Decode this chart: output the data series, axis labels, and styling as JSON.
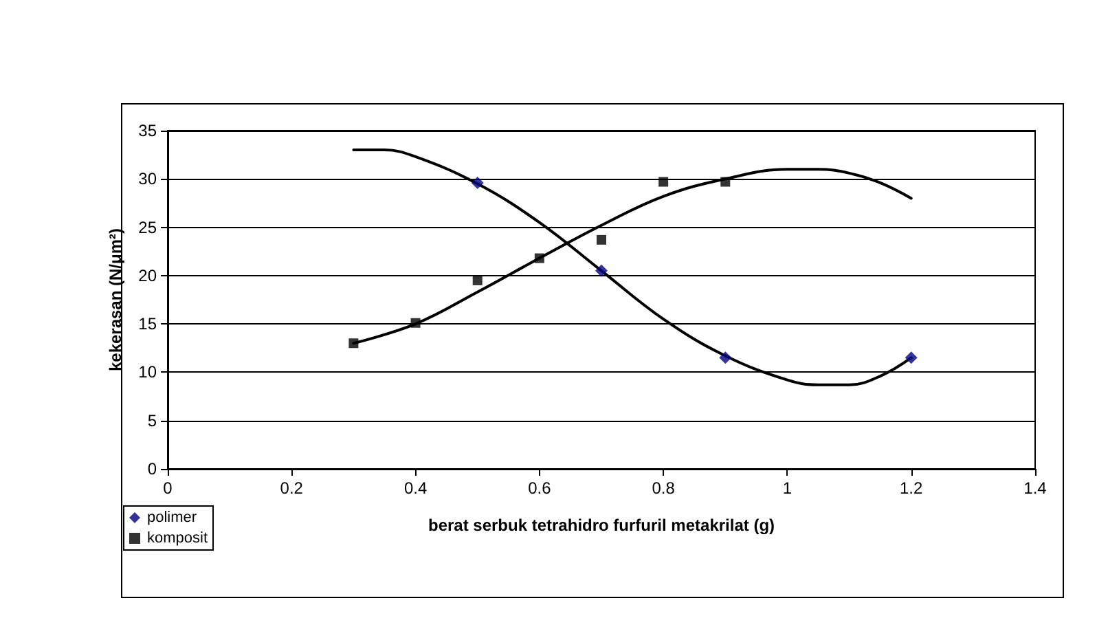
{
  "chart_data": {
    "type": "scatter",
    "xlabel": "berat serbuk tetrahidro furfuril metakrilat (g)",
    "ylabel": "kekerasan (N/μm²)",
    "xlim": [
      0,
      1.4
    ],
    "xticks": [
      0,
      0.2,
      0.4,
      0.6,
      0.8,
      1,
      1.2,
      1.4
    ],
    "ylim": [
      0,
      35
    ],
    "yticks": [
      0,
      5,
      10,
      15,
      20,
      25,
      30,
      35
    ],
    "grid": "y",
    "legend": "bottom left",
    "series": [
      {
        "name": "polimer",
        "color": "#000080",
        "marker": "diamond",
        "x": [
          0.5,
          0.7,
          0.9,
          1.2
        ],
        "values": [
          29.6,
          20.5,
          11.5,
          11.5
        ]
      },
      {
        "name": "komposit",
        "color": "#000000",
        "marker": "square",
        "x": [
          0.3,
          0.4,
          0.5,
          0.6,
          0.7,
          0.8,
          0.9
        ],
        "values": [
          13,
          15.1,
          19.5,
          21.8,
          23.7,
          29.7,
          29.7
        ]
      },
      {
        "type": "line",
        "color": "#000000",
        "marker": "none",
        "x": [
          0.3,
          0.35,
          0.4,
          0.5,
          0.6,
          0.7,
          0.8,
          0.9,
          1.0,
          1.05,
          1.1,
          1.15,
          1.2
        ],
        "values": [
          33,
          33,
          32.3,
          29.5,
          25.5,
          20.5,
          15.5,
          11.7,
          9.2,
          8.7,
          8.7,
          9.6,
          11.5
        ]
      },
      {
        "type": "line",
        "color": "#000000",
        "marker": "none",
        "x": [
          0.3,
          0.4,
          0.5,
          0.6,
          0.7,
          0.8,
          0.9,
          1.0,
          1.05,
          1.1,
          1.15,
          1.2
        ],
        "values": [
          13,
          15,
          18.3,
          21.8,
          25.2,
          28.2,
          30,
          31,
          31,
          30.6,
          29.6,
          28
        ]
      }
    ]
  }
}
